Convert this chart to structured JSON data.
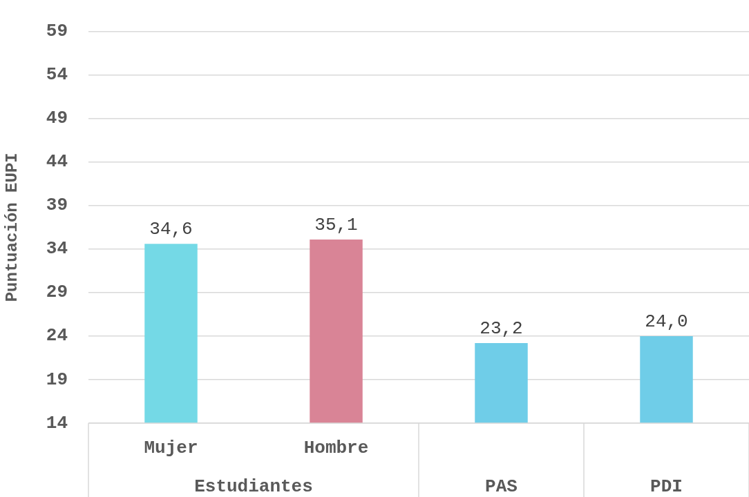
{
  "chart_data": {
    "type": "bar",
    "ylabel": "Puntuación EUPI",
    "categories": [
      "Mujer",
      "Hombre",
      "PAS",
      "PDI"
    ],
    "values": [
      34.6,
      35.1,
      23.2,
      24.0
    ],
    "colors": [
      "#74d9e6",
      "#d98496",
      "#6fcde8",
      "#6fcde8"
    ],
    "value_labels": [
      "34,6",
      "35,1",
      "23,2",
      "24,0"
    ],
    "annotations": [
      "Estudiantes"
    ],
    "ylim": [
      14,
      59
    ],
    "yticks": [
      14,
      19,
      24,
      29,
      34,
      39,
      44,
      49,
      54,
      59
    ],
    "grid": "y",
    "legend": false
  }
}
